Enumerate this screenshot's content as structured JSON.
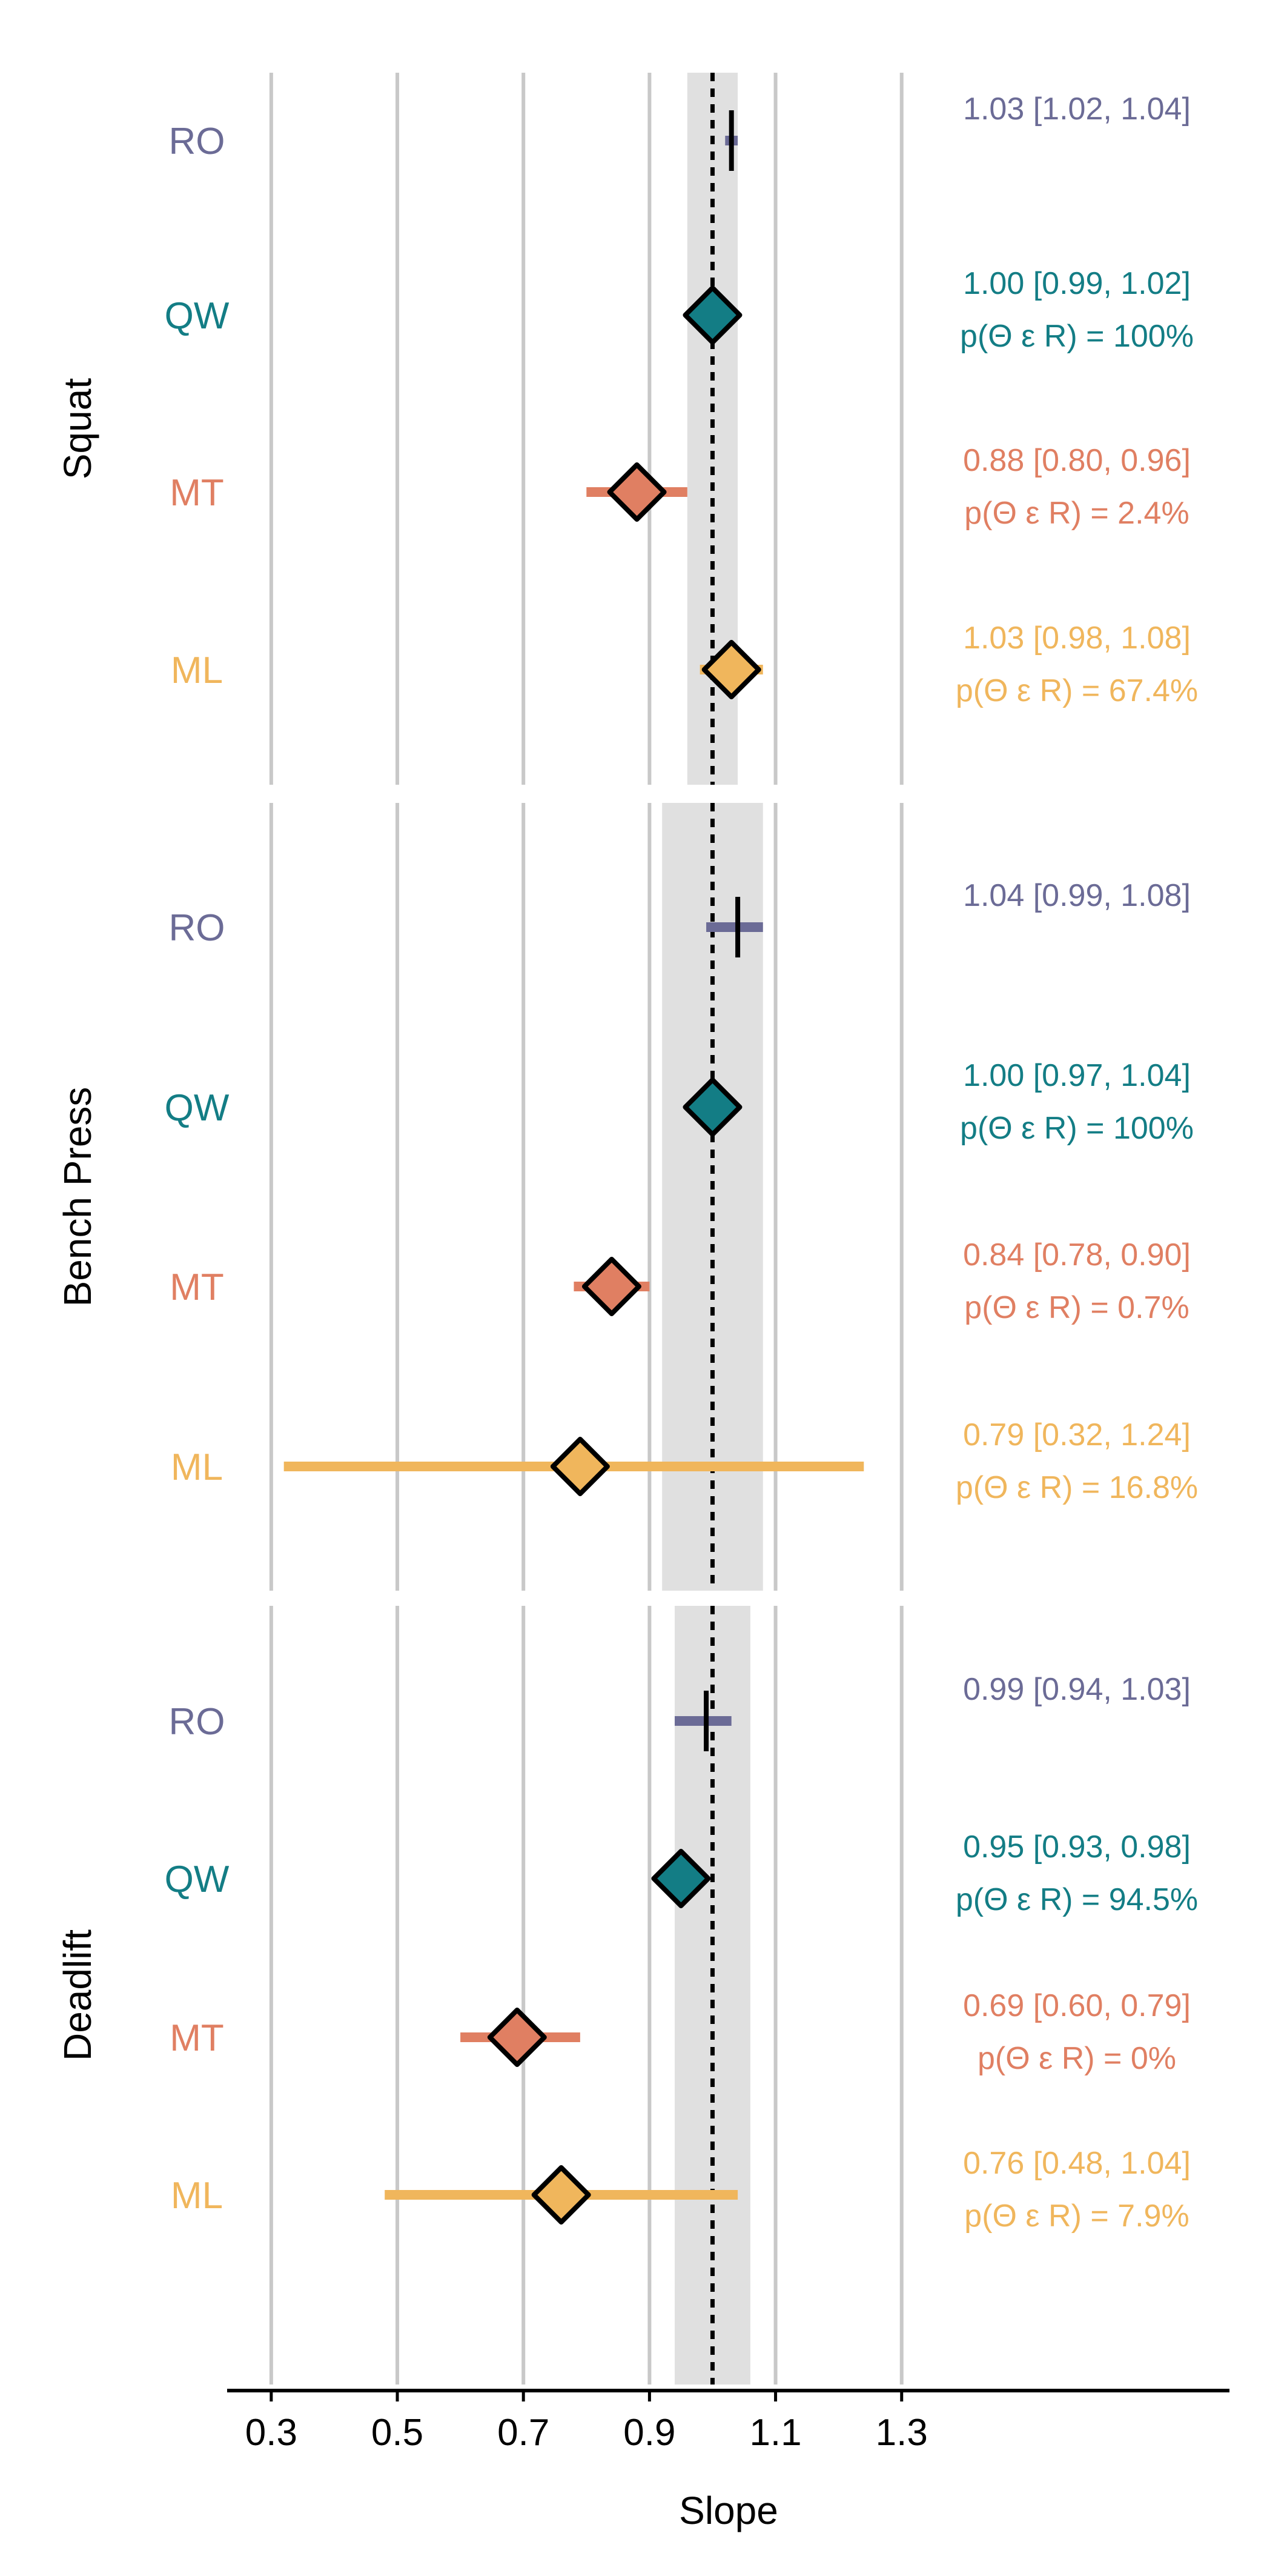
{
  "chart_data": {
    "type": "forest",
    "xlabel": "Slope",
    "xticks": [
      0.3,
      0.5,
      0.7,
      0.9,
      1.1,
      1.3
    ],
    "xtick_labels": [
      "0.3",
      "0.5",
      "0.7",
      "0.9",
      "1.1",
      "1.3"
    ],
    "xlim": [
      0.23,
      1.82
    ],
    "reference_line": 1.0,
    "grid": "vertical",
    "colors": {
      "RO": "#6b6b96",
      "QW": "#137d85",
      "MT": "#e07f62",
      "ML": "#f0b65c",
      "band": "#e0e0e0",
      "grid": "#c8c8c8"
    },
    "facets": [
      {
        "name": "Squat",
        "band": [
          0.96,
          1.04
        ],
        "rows": [
          {
            "category": "RO",
            "estimate": 1.03,
            "lower": 1.02,
            "upper": 1.04,
            "marker": "tick",
            "label": "1.03 [1.02, 1.04]",
            "prob": ""
          },
          {
            "category": "QW",
            "estimate": 1.0,
            "lower": 0.99,
            "upper": 1.02,
            "marker": "diamond",
            "label": "1.00 [0.99, 1.02]",
            "prob": "p(Θ ε R) = 100%"
          },
          {
            "category": "MT",
            "estimate": 0.88,
            "lower": 0.8,
            "upper": 0.96,
            "marker": "diamond",
            "label": "0.88 [0.80, 0.96]",
            "prob": "p(Θ ε R) = 2.4%"
          },
          {
            "category": "ML",
            "estimate": 1.03,
            "lower": 0.98,
            "upper": 1.08,
            "marker": "diamond",
            "label": "1.03 [0.98, 1.08]",
            "prob": "p(Θ ε R) = 67.4%"
          }
        ]
      },
      {
        "name": "Bench Press",
        "band": [
          0.92,
          1.08
        ],
        "rows": [
          {
            "category": "RO",
            "estimate": 1.04,
            "lower": 0.99,
            "upper": 1.08,
            "marker": "tick",
            "label": "1.04 [0.99, 1.08]",
            "prob": ""
          },
          {
            "category": "QW",
            "estimate": 1.0,
            "lower": 0.97,
            "upper": 1.04,
            "marker": "diamond",
            "label": "1.00 [0.97, 1.04]",
            "prob": "p(Θ ε R) = 100%"
          },
          {
            "category": "MT",
            "estimate": 0.84,
            "lower": 0.78,
            "upper": 0.9,
            "marker": "diamond",
            "label": "0.84 [0.78, 0.90]",
            "prob": "p(Θ ε R) = 0.7%"
          },
          {
            "category": "ML",
            "estimate": 0.79,
            "lower": 0.32,
            "upper": 1.24,
            "marker": "diamond",
            "label": "0.79 [0.32, 1.24]",
            "prob": "p(Θ ε R) = 16.8%"
          }
        ]
      },
      {
        "name": "Deadlift",
        "band": [
          0.94,
          1.06
        ],
        "rows": [
          {
            "category": "RO",
            "estimate": 0.99,
            "lower": 0.94,
            "upper": 1.03,
            "marker": "tick",
            "label": "0.99 [0.94, 1.03]",
            "prob": ""
          },
          {
            "category": "QW",
            "estimate": 0.95,
            "lower": 0.93,
            "upper": 0.98,
            "marker": "diamond",
            "label": "0.95 [0.93, 0.98]",
            "prob": "p(Θ ε R) = 94.5%"
          },
          {
            "category": "MT",
            "estimate": 0.69,
            "lower": 0.6,
            "upper": 0.79,
            "marker": "diamond",
            "label": "0.69 [0.60, 0.79]",
            "prob": "p(Θ ε R) = 0%"
          },
          {
            "category": "ML",
            "estimate": 0.76,
            "lower": 0.48,
            "upper": 1.04,
            "marker": "diamond",
            "label": "0.76 [0.48, 1.04]",
            "prob": "p(Θ ε R) = 7.9%"
          }
        ]
      }
    ]
  }
}
